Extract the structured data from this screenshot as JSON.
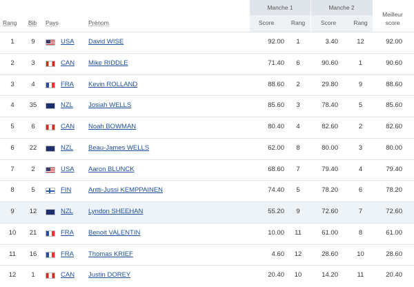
{
  "header": {
    "groups": [
      "Manche 1",
      "Manche 2"
    ],
    "columns": [
      "Rang",
      "Bib",
      "Pays",
      "Prénom",
      "Score",
      "Rang",
      "Score",
      "Rang",
      "Meilleur score"
    ]
  },
  "table": {
    "rows": [
      [
        "1",
        "9",
        "USA",
        "David WISE",
        "92.00",
        "1",
        "3.40",
        "12",
        "92.00"
      ],
      [
        "2",
        "3",
        "CAN",
        "Mike RIDDLE",
        "71.40",
        "6",
        "90.60",
        "1",
        "90.60"
      ],
      [
        "3",
        "4",
        "FRA",
        "Kevin ROLLAND",
        "88.60",
        "2",
        "29.80",
        "9",
        "88.60"
      ],
      [
        "4",
        "35",
        "NZL",
        "Josiah WELLS",
        "85.60",
        "3",
        "78.40",
        "5",
        "85.60"
      ],
      [
        "5",
        "6",
        "CAN",
        "Noah BOWMAN",
        "80.40",
        "4",
        "82.60",
        "2",
        "82.60"
      ],
      [
        "6",
        "22",
        "NZL",
        "Beau-James WELLS",
        "62.00",
        "8",
        "80.00",
        "3",
        "80.00"
      ],
      [
        "7",
        "2",
        "USA",
        "Aaron BLUNCK",
        "68.60",
        "7",
        "79.40",
        "4",
        "79.40"
      ],
      [
        "8",
        "5",
        "FIN",
        "Antti-Jussi KEMPPAINEN",
        "74.40",
        "5",
        "78.20",
        "6",
        "78.20"
      ],
      [
        "9",
        "12",
        "NZL",
        "Lyndon SHEEHAN",
        "55.20",
        "9",
        "72.60",
        "7",
        "72.60"
      ],
      [
        "10",
        "21",
        "FRA",
        "Benoit VALENTIN",
        "10.00",
        "11",
        "61.00",
        "8",
        "61.00"
      ],
      [
        "11",
        "16",
        "FRA",
        "Thomas KRIEF",
        "4.60",
        "12",
        "28.60",
        "10",
        "28.60"
      ],
      [
        "12",
        "1",
        "CAN",
        "Justin DOREY",
        "20.40",
        "10",
        "14.20",
        "11",
        "20.40"
      ]
    ]
  }
}
